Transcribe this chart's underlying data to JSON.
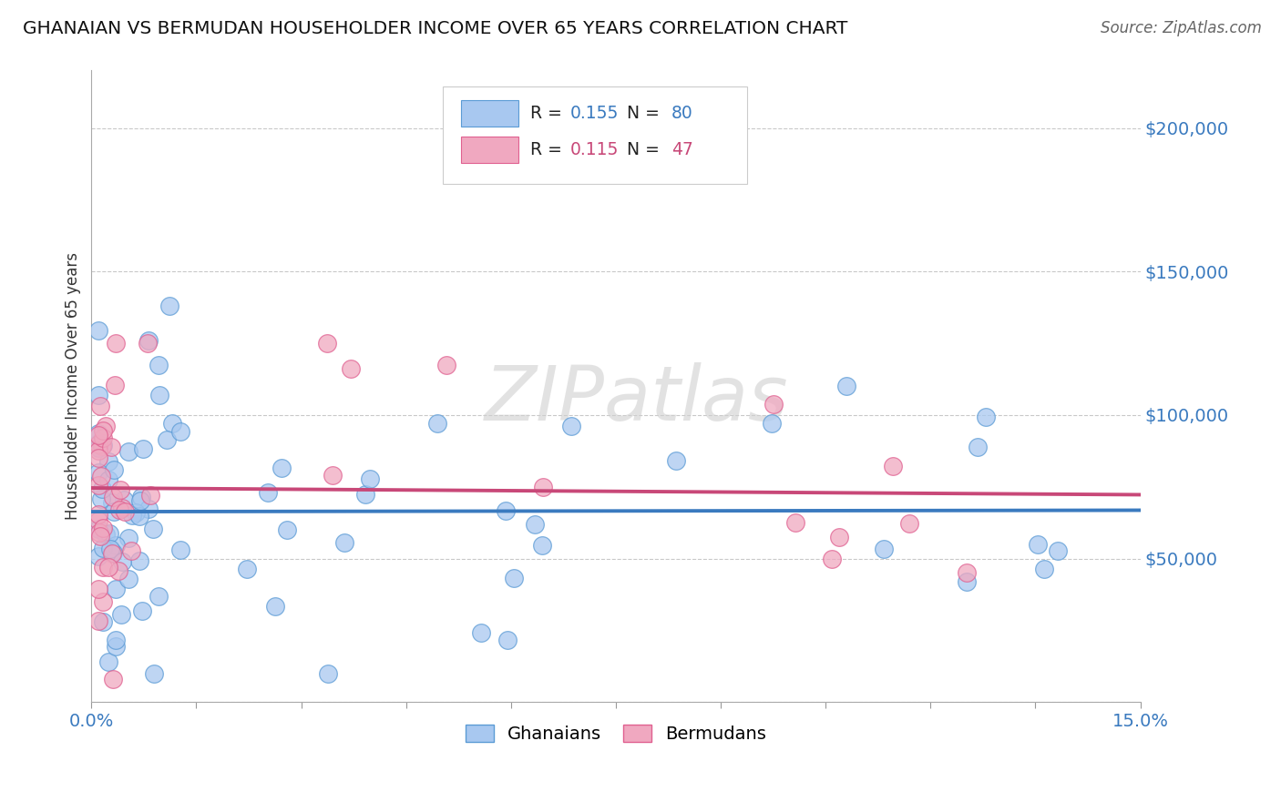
{
  "title": "GHANAIAN VS BERMUDAN HOUSEHOLDER INCOME OVER 65 YEARS CORRELATION CHART",
  "source_text": "Source: ZipAtlas.com",
  "watermark": "ZIPatlas",
  "ylabel": "Householder Income Over 65 years",
  "xlim": [
    0.0,
    0.15
  ],
  "ylim": [
    0,
    220000
  ],
  "yticks": [
    0,
    50000,
    100000,
    150000,
    200000
  ],
  "ytick_labels": [
    "",
    "$50,000",
    "$100,000",
    "$150,000",
    "$200,000"
  ],
  "ghanaian_color": "#a8c8f0",
  "bermudan_color": "#f0a8c0",
  "ghanaian_edge_color": "#5b9bd5",
  "bermudan_edge_color": "#e06090",
  "ghanaian_line_color": "#3a7abf",
  "bermudan_line_color": "#c84878",
  "R_ghanaian": 0.155,
  "N_ghanaian": 80,
  "R_bermudan": 0.115,
  "N_bermudan": 47,
  "legend_label_ghanaian": "Ghanaians",
  "legend_label_bermudan": "Bermudans",
  "background_color": "#ffffff",
  "grid_color": "#bbbbbb",
  "title_color": "#111111",
  "axis_label_color": "#333333",
  "ytick_color": "#3a7abf",
  "xtick_color": "#3a7abf",
  "watermark_color": "#d0d0d0"
}
